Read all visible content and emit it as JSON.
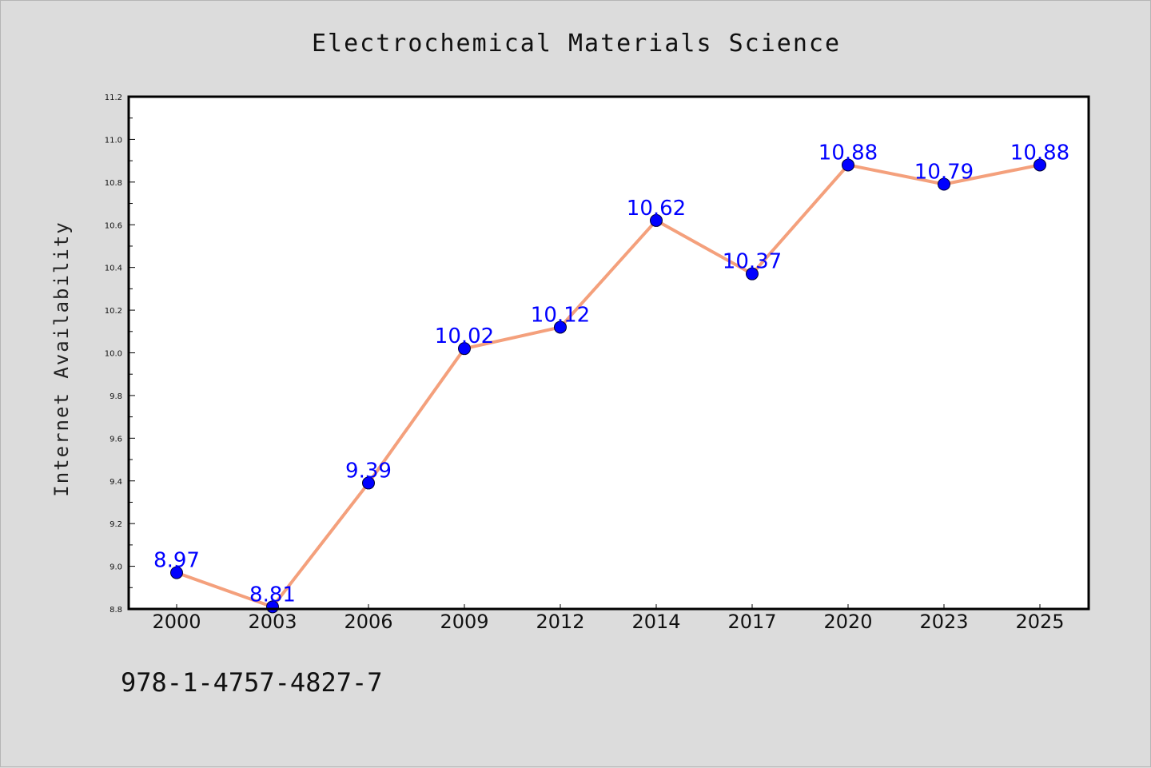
{
  "chart_data": {
    "type": "line",
    "title": "Electrochemical Materials Science",
    "xlabel": "",
    "ylabel": "Internet Availability",
    "categories": [
      "2000",
      "2003",
      "2006",
      "2009",
      "2012",
      "2014",
      "2017",
      "2020",
      "2023",
      "2025"
    ],
    "series": [
      {
        "values": [
          8.97,
          8.81,
          9.39,
          10.02,
          10.12,
          10.62,
          10.37,
          10.88,
          10.79,
          10.88
        ],
        "line_color": "#f4a07c",
        "marker_color": "#0000ff"
      }
    ],
    "data_labels": [
      "8.97",
      "8.81",
      "9.39",
      "10.02",
      "10.12",
      "10.62",
      "10.37",
      "10.88",
      "10.79",
      "10.88"
    ],
    "ylim": [
      8.8,
      11.2
    ],
    "yticks": [
      "8.8",
      "9.0",
      "9.2",
      "9.4",
      "9.6",
      "9.8",
      "10.0",
      "10.2",
      "10.4",
      "10.6",
      "10.8",
      "11.0",
      "11.2"
    ],
    "grid": false,
    "legend": "none"
  },
  "footnote": "978-1-4757-4827-7",
  "colors": {
    "background": "#dcdcdc",
    "plot_area": "#ffffff",
    "line": "#f4a07c",
    "marker": "#0000ff",
    "data_label": "#0000ff"
  }
}
